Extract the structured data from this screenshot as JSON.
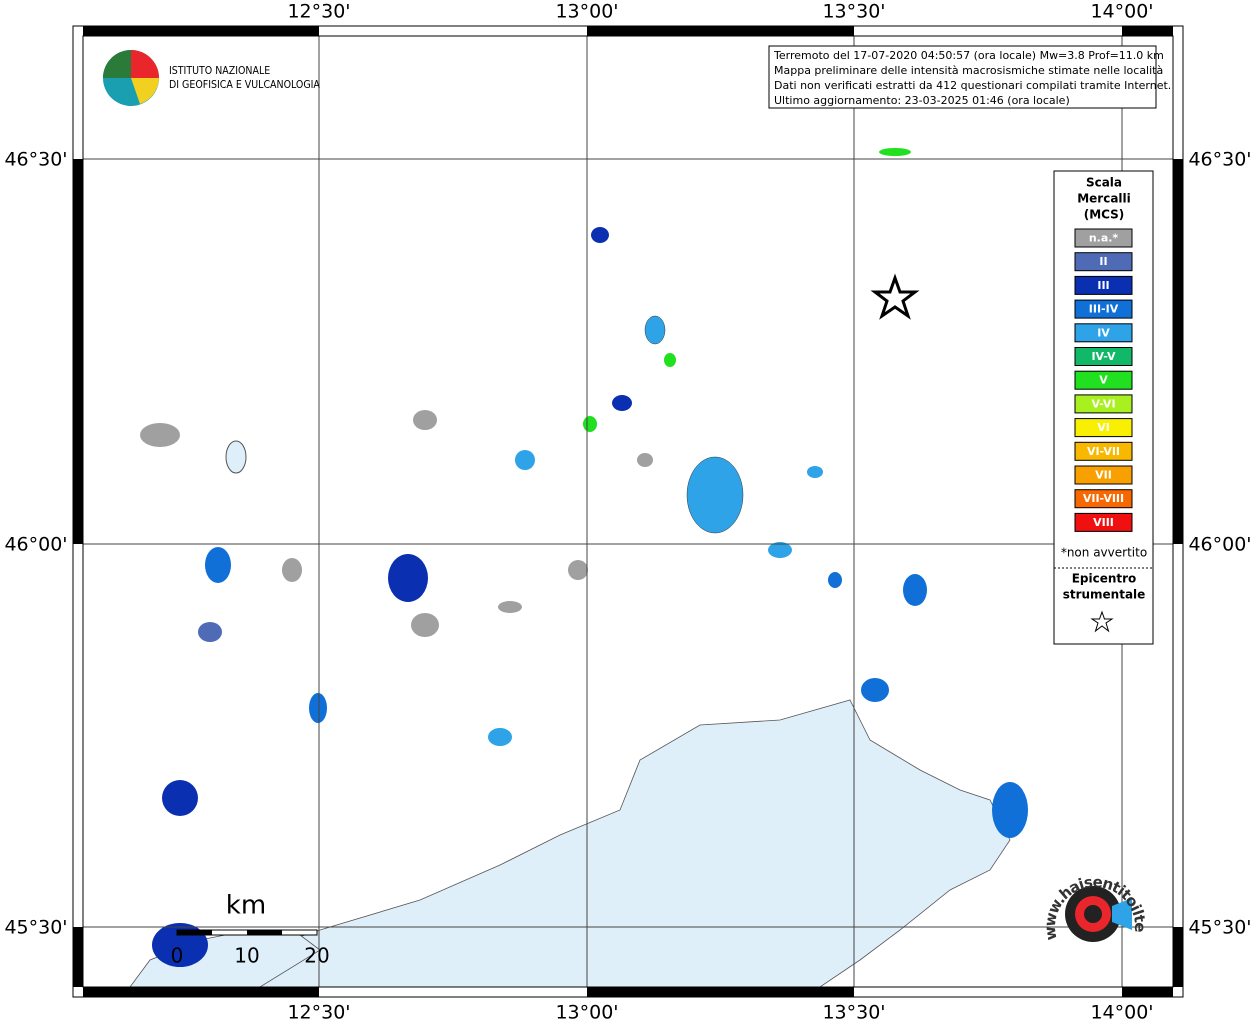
{
  "map": {
    "lon_labels": [
      "12°30'",
      "13°00'",
      "13°30'",
      "14°00'"
    ],
    "lat_labels": [
      "46°30'",
      "46°00'",
      "45°30'"
    ],
    "info": [
      "Terremoto del 17-07-2020 04:50:57 (ora locale) Mw=3.8 Prof=11.0 km",
      "Mappa preliminare delle intensità macrosismiche stimate nelle località",
      "Dati non verificati estratti da 412 questionari compilati tramite Internet.",
      "Ultimo aggiornamento: 23-03-2025 01:46 (ora locale)"
    ],
    "institute": [
      "ISTITUTO NAZIONALE",
      "DI GEOFISICA E VULCANOLOGIA"
    ],
    "legend": {
      "title": [
        "Scala",
        "Mercalli",
        "(MCS)"
      ],
      "items": [
        {
          "label": "n.a.*",
          "color": "#a0a0a0"
        },
        {
          "label": "II",
          "color": "#4f6bb5"
        },
        {
          "label": "III",
          "color": "#0a2fb0"
        },
        {
          "label": "III-IV",
          "color": "#1070d8"
        },
        {
          "label": "IV",
          "color": "#2ea3e8"
        },
        {
          "label": "IV-V",
          "color": "#10b868"
        },
        {
          "label": "V",
          "color": "#20e020"
        },
        {
          "label": "V-VI",
          "color": "#a8f020"
        },
        {
          "label": "VI",
          "color": "#f8f000"
        },
        {
          "label": "VI-VII",
          "color": "#f8b800"
        },
        {
          "label": "VII",
          "color": "#f8a000"
        },
        {
          "label": "VII-VIII",
          "color": "#f86800"
        },
        {
          "label": "VIII",
          "color": "#f01010"
        }
      ],
      "note": "*non avvertito",
      "epicentre": [
        "Epicentro",
        "strumentale"
      ]
    },
    "scale": {
      "unit": "km",
      "ticks": [
        "0",
        "10",
        "20"
      ]
    },
    "watermark": "www.haisentitoilterremoto.it"
  }
}
